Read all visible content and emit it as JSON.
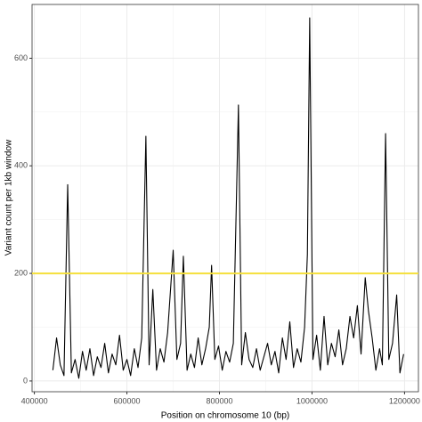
{
  "chart_data": {
    "type": "line",
    "xlabel": "Position on chromosome 10 (bp)",
    "ylabel": "Variant count per 1kb window",
    "x": [
      440000,
      448000,
      456000,
      464000,
      472000,
      480000,
      488000,
      496000,
      504000,
      512000,
      520000,
      528000,
      536000,
      544000,
      552000,
      560000,
      568000,
      576000,
      584000,
      592000,
      600000,
      608000,
      616000,
      624000,
      632000,
      641000,
      648000,
      656000,
      664000,
      672000,
      680000,
      688000,
      700000,
      708000,
      716000,
      722000,
      730000,
      738000,
      746000,
      754000,
      762000,
      770000,
      778000,
      783000,
      790000,
      798000,
      806000,
      814000,
      822000,
      830000,
      841000,
      848000,
      856000,
      864000,
      872000,
      880000,
      888000,
      896000,
      904000,
      912000,
      920000,
      928000,
      936000,
      944000,
      952000,
      960000,
      968000,
      976000,
      984000,
      990000,
      995000,
      1002000,
      1010000,
      1018000,
      1026000,
      1034000,
      1042000,
      1050000,
      1058000,
      1066000,
      1074000,
      1082000,
      1090000,
      1098000,
      1106000,
      1115000,
      1122000,
      1130000,
      1138000,
      1146000,
      1152000,
      1159000,
      1166000,
      1174000,
      1183000,
      1190000,
      1198000
    ],
    "series": [
      {
        "color": "#000000",
        "values": [
          20,
          80,
          30,
          10,
          365,
          15,
          40,
          5,
          55,
          20,
          60,
          10,
          45,
          25,
          70,
          15,
          50,
          30,
          85,
          20,
          40,
          10,
          60,
          25,
          80,
          455,
          30,
          170,
          20,
          60,
          35,
          90,
          243,
          40,
          70,
          232,
          20,
          50,
          25,
          80,
          30,
          60,
          100,
          215,
          40,
          65,
          20,
          55,
          35,
          70,
          513,
          30,
          90,
          40,
          25,
          60,
          20,
          45,
          70,
          30,
          55,
          15,
          80,
          40,
          110,
          25,
          60,
          35,
          100,
          235,
          675,
          40,
          85,
          20,
          120,
          30,
          70,
          45,
          95,
          30,
          60,
          120,
          80,
          140,
          50,
          192,
          130,
          80,
          20,
          60,
          30,
          460,
          40,
          70,
          160,
          15,
          50
        ]
      }
    ],
    "reference_line": {
      "y": 200,
      "color": "#f5e03c"
    },
    "xlim": [
      395000,
      1230000
    ],
    "ylim": [
      -20,
      700
    ],
    "xticks": [
      400000,
      600000,
      800000,
      1000000,
      1200000
    ],
    "yticks": [
      0,
      200,
      400,
      600
    ],
    "minor_xticks": [
      500000,
      700000,
      900000,
      1100000
    ],
    "minor_yticks": [
      100,
      300,
      500
    ],
    "grid": true
  }
}
